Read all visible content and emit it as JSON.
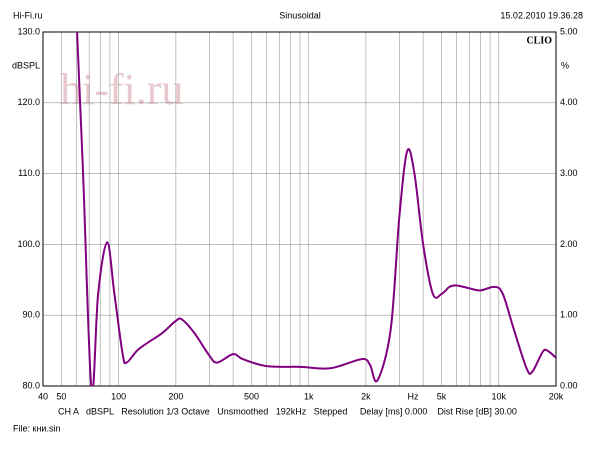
{
  "chart_data": {
    "type": "line",
    "header": {
      "left": "Hi-Fi.ru",
      "center": "Sinusoidal",
      "right": "15.02.2010 19.36.28"
    },
    "brand": "CLIO",
    "watermark": "hi-fi.ru",
    "y_label": "dBSPL",
    "y2_label": "%",
    "x_label": "Hz",
    "footer": "CH A   dBSPL   Resolution 1/3 Octave   Unsmoothed   192kHz   Stepped     Delay [ms] 0.000    Dist Rise [dB] 30.00",
    "file": "File: кни.sin",
    "x_scale": "log",
    "xlim": [
      40,
      20000
    ],
    "xticks": [
      40,
      50,
      100,
      200,
      500,
      {
        "value": 1000,
        "label": "1k"
      },
      {
        "value": 2000,
        "label": "2k"
      },
      {
        "value": 5000,
        "label": "5k"
      },
      {
        "value": 10000,
        "label": "10k"
      },
      {
        "value": 20000,
        "label": "20k"
      }
    ],
    "xgrid": [
      50,
      60,
      70,
      80,
      90,
      100,
      200,
      300,
      400,
      500,
      600,
      700,
      800,
      900,
      1000,
      2000,
      3000,
      4000,
      5000,
      6000,
      7000,
      8000,
      9000,
      10000
    ],
    "ylim": [
      80,
      130
    ],
    "yticks": [
      {
        "value": 80,
        "label": "80.0"
      },
      {
        "value": 90,
        "label": "90.0"
      },
      {
        "value": 100,
        "label": "100.0"
      },
      {
        "value": 110,
        "label": "110.0"
      },
      {
        "value": 120,
        "label": "120.0"
      },
      {
        "value": 130,
        "label": "130.0"
      }
    ],
    "y2lim": [
      0,
      5
    ],
    "y2ticks": [
      {
        "value": 0,
        "label": "0.00"
      },
      {
        "value": 1,
        "label": "1.00"
      },
      {
        "value": 2,
        "label": "2.00"
      },
      {
        "value": 3,
        "label": "3.00"
      },
      {
        "value": 4,
        "label": "4.00"
      },
      {
        "value": 5,
        "label": "5.00"
      }
    ],
    "x": [
      60,
      65,
      72,
      78,
      87,
      95,
      105,
      110,
      125,
      140,
      170,
      200,
      215,
      250,
      300,
      330,
      400,
      450,
      600,
      900,
      1300,
      1900,
      2100,
      2300,
      2700,
      3000,
      3300,
      3600,
      4000,
      4500,
      5000,
      5500,
      6000,
      7000,
      8000,
      9500,
      10500,
      12000,
      14000,
      15000,
      17000,
      18000,
      20000
    ],
    "series": [
      {
        "name": "CH A",
        "color": "#800080",
        "values": [
          132,
          110,
          79.5,
          93,
          100.3,
          93,
          84.5,
          83.3,
          85,
          86,
          87.5,
          89.2,
          89.4,
          87.5,
          84.3,
          83.3,
          84.5,
          83.8,
          82.8,
          82.7,
          82.5,
          83.8,
          83,
          80.8,
          88,
          104,
          113.2,
          110,
          100,
          93,
          93,
          94,
          94.2,
          93.8,
          93.5,
          94,
          93,
          88,
          82.5,
          82,
          84.8,
          85,
          84
        ]
      }
    ]
  }
}
